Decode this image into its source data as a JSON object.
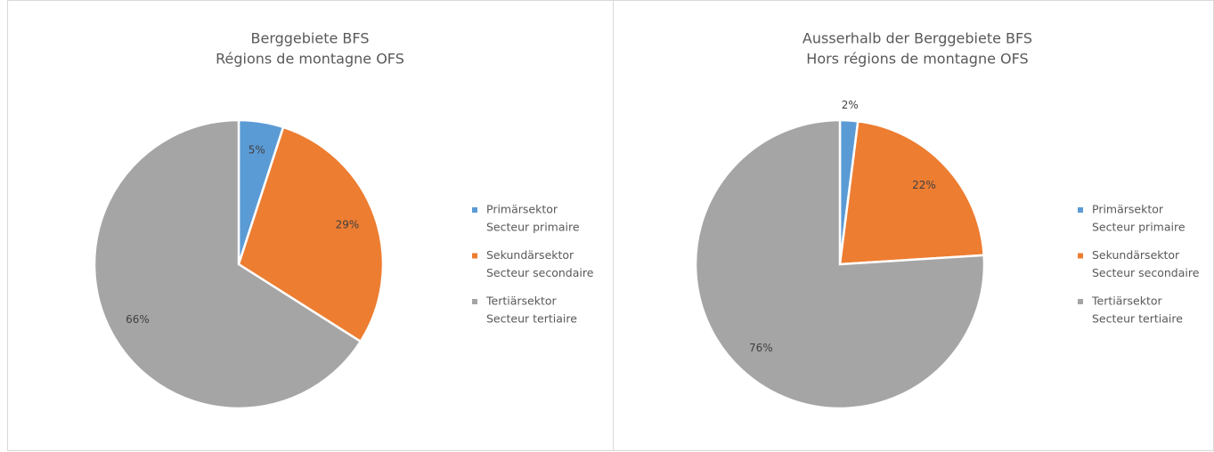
{
  "chart_data": [
    {
      "type": "pie",
      "title": [
        "Berggebiete BFS",
        "Régions de montagne OFS"
      ],
      "categories": [
        [
          "Primärsektor",
          "Secteur primaire"
        ],
        [
          "Sekundärsektor",
          "Secteur secondaire"
        ],
        [
          "Tertiärsektor",
          "Secteur tertiaire"
        ]
      ],
      "values": [
        5,
        29,
        66
      ],
      "value_labels": [
        "5%",
        "29%",
        "66%"
      ],
      "colors": [
        "#5b9bd5",
        "#ed7d31",
        "#a5a5a5"
      ],
      "legend": "right"
    },
    {
      "type": "pie",
      "title": [
        "Ausserhalb der Berggebiete BFS",
        "Hors régions de montagne OFS"
      ],
      "categories": [
        [
          "Primärsektor",
          "Secteur primaire"
        ],
        [
          "Sekundärsektor",
          "Secteur secondaire"
        ],
        [
          "Tertiärsektor",
          "Secteur tertiaire"
        ]
      ],
      "values": [
        2,
        22,
        76
      ],
      "value_labels": [
        "2%",
        "22%",
        "76%"
      ],
      "colors": [
        "#5b9bd5",
        "#ed7d31",
        "#a5a5a5"
      ],
      "legend": "right"
    }
  ]
}
